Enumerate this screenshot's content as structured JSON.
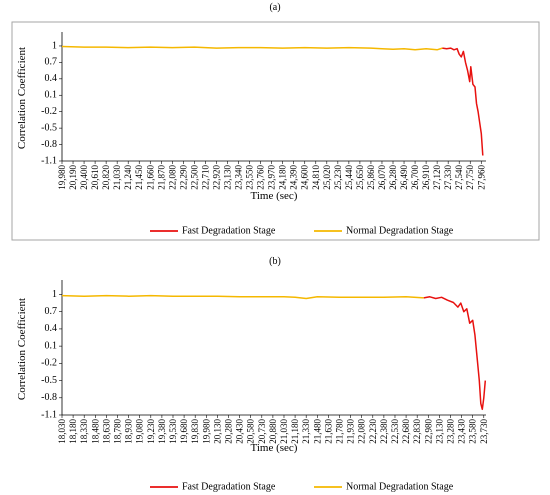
{
  "panel_a_label": "(a)",
  "panel_b_label": "(b)",
  "colors": {
    "fast": "#e8110f",
    "normal": "#f5b800"
  },
  "chart_data": [
    {
      "type": "line",
      "panel": "(a)",
      "xlabel": "Time (sec)",
      "ylabel": "Correlation Coefficient",
      "ylim": [
        -1.1,
        1.2
      ],
      "xlim": [
        19980,
        28050
      ],
      "yticks": [
        "1",
        "0.7",
        "0.4",
        "0.1",
        "-0.2",
        "-0.5",
        "-0.8",
        "-1.1"
      ],
      "xticks": [
        19980,
        20190,
        20400,
        20610,
        20820,
        21030,
        21240,
        21450,
        21660,
        21870,
        22080,
        22290,
        22500,
        22710,
        22920,
        23130,
        23340,
        23550,
        23760,
        23970,
        24180,
        24390,
        24600,
        24810,
        25020,
        25230,
        25440,
        25650,
        25860,
        26070,
        26280,
        26490,
        26700,
        26910,
        27120,
        27330,
        27540,
        27750,
        27960
      ],
      "grid": false,
      "legend": "bottom",
      "series": [
        {
          "name": "Normal Degradation Stage",
          "x": [
            19980,
            20400,
            20820,
            21240,
            21660,
            22080,
            22500,
            22920,
            23340,
            23760,
            24180,
            24600,
            25020,
            25440,
            25860,
            26070,
            26280,
            26490,
            26700,
            26910,
            27120,
            27220
          ],
          "y": [
            0.99,
            0.98,
            0.98,
            0.97,
            0.98,
            0.97,
            0.98,
            0.96,
            0.97,
            0.97,
            0.96,
            0.97,
            0.96,
            0.97,
            0.96,
            0.95,
            0.94,
            0.95,
            0.93,
            0.95,
            0.93,
            0.96
          ]
        },
        {
          "name": "Fast Degradation Stage",
          "x": [
            27220,
            27300,
            27380,
            27440,
            27500,
            27540,
            27580,
            27620,
            27660,
            27700,
            27740,
            27760,
            27800,
            27840,
            27870,
            27900,
            27930,
            27960,
            27990
          ],
          "y": [
            0.96,
            0.95,
            0.96,
            0.93,
            0.95,
            0.85,
            0.8,
            0.9,
            0.7,
            0.55,
            0.35,
            0.62,
            0.3,
            0.25,
            -0.05,
            -0.2,
            -0.4,
            -0.6,
            -1.0
          ]
        }
      ]
    },
    {
      "type": "line",
      "panel": "(b)",
      "xlabel": "Time (sec)",
      "ylabel": "Correlation Coefficient",
      "ylim": [
        -1.1,
        1.2
      ],
      "xlim": [
        18030,
        23760
      ],
      "yticks": [
        "1",
        "0.7",
        "0.4",
        "0.1",
        "-0.2",
        "-0.5",
        "-0.8",
        "-1.1"
      ],
      "xticks": [
        18030,
        18180,
        18330,
        18480,
        18630,
        18780,
        18930,
        19080,
        19230,
        19380,
        19530,
        19680,
        19830,
        19980,
        20130,
        20280,
        20430,
        20580,
        20730,
        20880,
        21030,
        21180,
        21330,
        21480,
        21630,
        21780,
        21930,
        22080,
        22230,
        22380,
        22530,
        22680,
        22830,
        22980,
        23130,
        23280,
        23430,
        23580,
        23730
      ],
      "grid": false,
      "legend": "bottom",
      "series": [
        {
          "name": "Normal Degradation Stage",
          "x": [
            18030,
            18330,
            18630,
            18930,
            19230,
            19530,
            19830,
            20130,
            20430,
            20730,
            21030,
            21180,
            21330,
            21480,
            21780,
            22080,
            22380,
            22680,
            22920
          ],
          "y": [
            0.98,
            0.97,
            0.98,
            0.97,
            0.98,
            0.97,
            0.97,
            0.97,
            0.96,
            0.96,
            0.96,
            0.95,
            0.93,
            0.96,
            0.95,
            0.95,
            0.95,
            0.96,
            0.94
          ]
        },
        {
          "name": "Fast Degradation Stage",
          "x": [
            22920,
            23000,
            23080,
            23160,
            23240,
            23320,
            23380,
            23420,
            23460,
            23500,
            23540,
            23580,
            23610,
            23640,
            23670,
            23690,
            23710,
            23730,
            23750
          ],
          "y": [
            0.94,
            0.96,
            0.93,
            0.95,
            0.9,
            0.86,
            0.78,
            0.85,
            0.7,
            0.75,
            0.5,
            0.55,
            0.3,
            -0.1,
            -0.5,
            -0.9,
            -1.0,
            -0.8,
            -0.5
          ]
        }
      ]
    }
  ]
}
